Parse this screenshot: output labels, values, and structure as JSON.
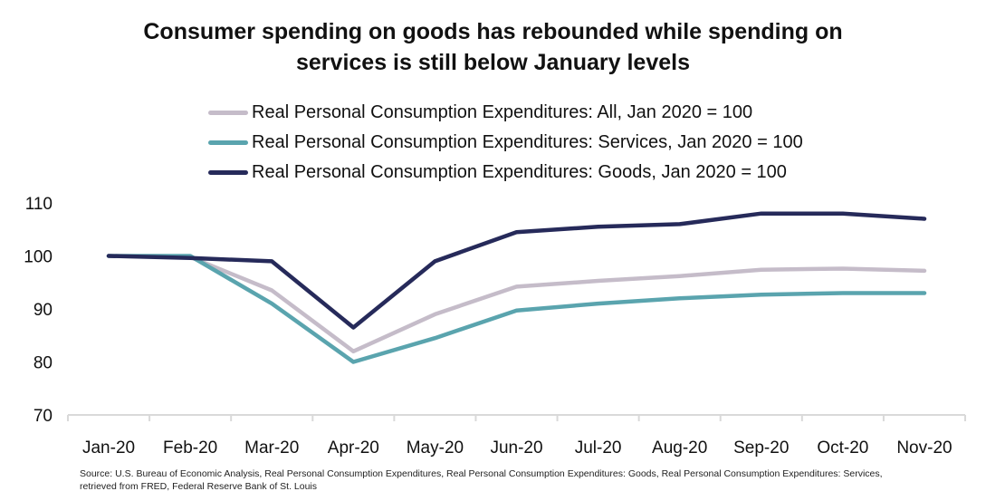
{
  "chart_data": {
    "type": "line",
    "title_lines": [
      "Consumer spending on goods has rebounded while spending on",
      "services is still below January levels"
    ],
    "title": "Consumer spending on goods has rebounded while spending on services is still below January levels",
    "xlabel": "",
    "ylabel": "",
    "categories": [
      "Jan-20",
      "Feb-20",
      "Mar-20",
      "Apr-20",
      "May-20",
      "Jun-20",
      "Jul-20",
      "Aug-20",
      "Sep-20",
      "Oct-20",
      "Nov-20"
    ],
    "yticks": [
      70,
      80,
      90,
      100,
      110
    ],
    "ylim": [
      70,
      110
    ],
    "grid": false,
    "legend_position": "top",
    "series": [
      {
        "name": "Real Personal Consumption Expenditures: All, Jan 2020 = 100",
        "color": "#c5bcc9",
        "values": [
          100,
          99.8,
          93.5,
          82,
          89,
          94.2,
          95.3,
          96.2,
          97.4,
          97.6,
          97.2
        ]
      },
      {
        "name": "Real Personal Consumption Expenditures: Services, Jan 2020 = 100",
        "color": "#5aa4ae",
        "values": [
          100,
          100,
          91,
          80,
          84.5,
          89.7,
          91,
          92,
          92.7,
          93,
          93
        ]
      },
      {
        "name": "Real Personal Consumption Expenditures: Goods, Jan 2020 = 100",
        "color": "#262a5a",
        "values": [
          100,
          99.6,
          99,
          86.5,
          99,
          104.5,
          105.5,
          106,
          108,
          108,
          107
        ]
      }
    ],
    "source": "Source: U.S. Bureau of Economic Analysis, Real Personal Consumption Expenditures, Real Personal Consumption Expenditures: Goods, Real Personal Consumption Expenditures: Services, retrieved from FRED, Federal Reserve Bank of St. Louis"
  },
  "axis_color": "#d9d9d9"
}
